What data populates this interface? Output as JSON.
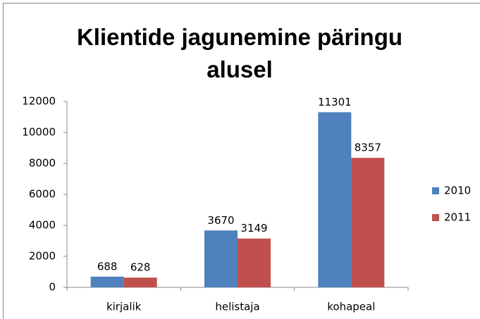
{
  "chart_data": {
    "type": "bar",
    "title": "Klientide jagunemine päringu alusel",
    "categories": [
      "kirjalik",
      "helistaja",
      "kohapeal"
    ],
    "series": [
      {
        "name": "2010",
        "color": "#4f81bd",
        "values": [
          688,
          3670,
          11301
        ]
      },
      {
        "name": "2011",
        "color": "#c0504d",
        "values": [
          628,
          3149,
          8357
        ]
      }
    ],
    "ylim": [
      0,
      12000
    ],
    "yticks": [
      0,
      2000,
      4000,
      6000,
      8000,
      10000,
      12000
    ],
    "grid": false,
    "legend": "right"
  }
}
